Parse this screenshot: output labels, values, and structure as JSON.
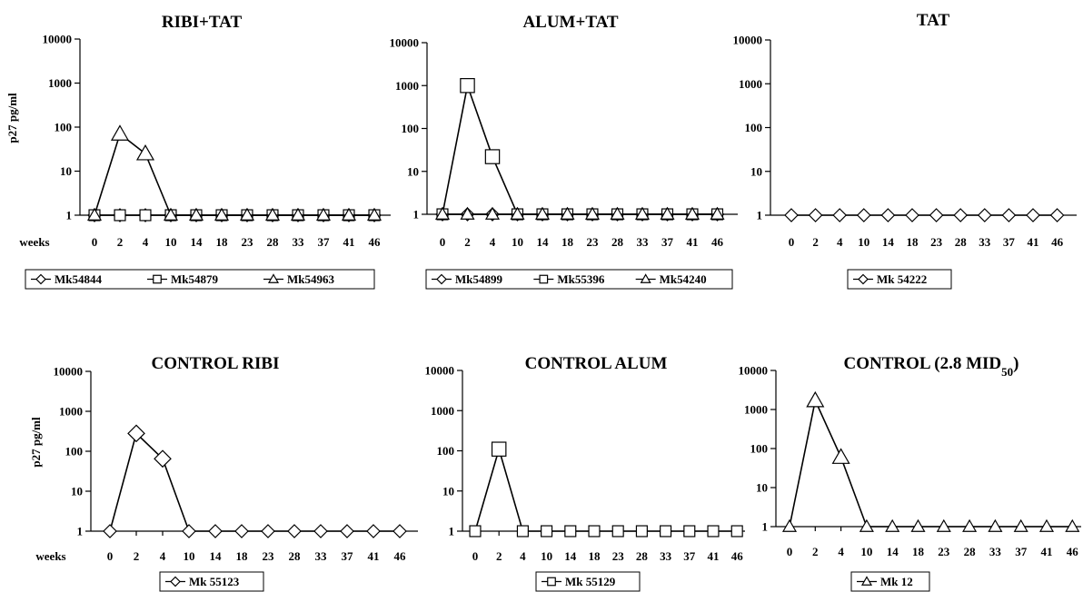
{
  "chart_data": [
    {
      "type": "line",
      "title": "RIBI+TAT",
      "title_sub": "",
      "ylabel": "p27 pg/ml",
      "xlabel": "weeks",
      "yscale": "log",
      "ylim": [
        1,
        10000
      ],
      "yticks": [
        "10000",
        "1000",
        "100",
        "10",
        "1"
      ],
      "categories": [
        "0",
        "2",
        "4",
        "10",
        "14",
        "18",
        "23",
        "28",
        "33",
        "37",
        "41",
        "46"
      ],
      "series": [
        {
          "name": "Mk54844",
          "marker": "diamond",
          "values": [
            1,
            1,
            1,
            1,
            1,
            1,
            1,
            1,
            1,
            1,
            1,
            1
          ]
        },
        {
          "name": "Mk54879",
          "marker": "square",
          "values": [
            1,
            1,
            1,
            1,
            1,
            1,
            1,
            1,
            1,
            1,
            1,
            1
          ]
        },
        {
          "name": "Mk54963",
          "marker": "triangle",
          "values": [
            1,
            70,
            25,
            1,
            1,
            1,
            1,
            1,
            1,
            1,
            1,
            1
          ]
        }
      ],
      "legend_position": "bottom"
    },
    {
      "type": "line",
      "title": "ALUM+TAT",
      "title_sub": "",
      "ylabel": "",
      "xlabel": "",
      "yscale": "log",
      "ylim": [
        1,
        10000
      ],
      "yticks": [
        "10000",
        "1000",
        "100",
        "10",
        "1"
      ],
      "categories": [
        "0",
        "2",
        "4",
        "10",
        "14",
        "18",
        "23",
        "28",
        "33",
        "37",
        "41",
        "46"
      ],
      "series": [
        {
          "name": "Mk54899",
          "marker": "diamond",
          "values": [
            1,
            1,
            1,
            1,
            1,
            1,
            1,
            1,
            1,
            1,
            1,
            1
          ]
        },
        {
          "name": "Mk55396",
          "marker": "square",
          "values": [
            1,
            1000,
            22,
            1,
            1,
            1,
            1,
            1,
            1,
            1,
            1,
            1
          ]
        },
        {
          "name": "Mk54240",
          "marker": "triangle",
          "values": [
            1,
            1,
            1,
            1,
            1,
            1,
            1,
            1,
            1,
            1,
            1,
            1
          ]
        }
      ],
      "legend_position": "bottom"
    },
    {
      "type": "line",
      "title": "TAT",
      "title_sub": "",
      "ylabel": "",
      "xlabel": "",
      "yscale": "log",
      "ylim": [
        1,
        10000
      ],
      "yticks": [
        "10000",
        "1000",
        "100",
        "10",
        "1"
      ],
      "categories": [
        "0",
        "2",
        "4",
        "10",
        "14",
        "18",
        "23",
        "28",
        "33",
        "37",
        "41",
        "46"
      ],
      "series": [
        {
          "name": "Mk 54222",
          "marker": "diamond",
          "values": [
            1,
            1,
            1,
            1,
            1,
            1,
            1,
            1,
            1,
            1,
            1,
            1
          ]
        }
      ],
      "legend_position": "bottom"
    },
    {
      "type": "line",
      "title": "CONTROL RIBI",
      "title_sub": "",
      "ylabel": "p27 pg/ml",
      "xlabel": "weeks",
      "yscale": "log",
      "ylim": [
        1,
        10000
      ],
      "yticks": [
        "10000",
        "1000",
        "100",
        "10",
        "1"
      ],
      "categories": [
        "0",
        "2",
        "4",
        "10",
        "14",
        "18",
        "23",
        "28",
        "33",
        "37",
        "41",
        "46"
      ],
      "series": [
        {
          "name": "Mk 55123",
          "marker": "diamond",
          "values": [
            1,
            280,
            65,
            1,
            1,
            1,
            1,
            1,
            1,
            1,
            1,
            1
          ]
        }
      ],
      "legend_position": "bottom"
    },
    {
      "type": "line",
      "title": "CONTROL ALUM",
      "title_sub": "",
      "ylabel": "",
      "xlabel": "",
      "yscale": "log",
      "ylim": [
        1,
        10000
      ],
      "yticks": [
        "10000",
        "1000",
        "100",
        "10",
        "1"
      ],
      "categories": [
        "0",
        "2",
        "4",
        "10",
        "14",
        "18",
        "23",
        "28",
        "33",
        "37",
        "41",
        "46"
      ],
      "series": [
        {
          "name": "Mk 55129",
          "marker": "square",
          "values": [
            1,
            110,
            1,
            1,
            1,
            1,
            1,
            1,
            1,
            1,
            1,
            1
          ]
        }
      ],
      "legend_position": "bottom"
    },
    {
      "type": "line",
      "title": "CONTROL (2.8 MID",
      "title_sub": "50",
      "title_end": ")",
      "ylabel": "",
      "xlabel": "",
      "yscale": "log",
      "ylim": [
        1,
        10000
      ],
      "yticks": [
        "10000",
        "1000",
        "100",
        "10",
        "1"
      ],
      "categories": [
        "0",
        "2",
        "4",
        "10",
        "14",
        "18",
        "23",
        "28",
        "33",
        "37",
        "41",
        "46"
      ],
      "series": [
        {
          "name": "Mk 12",
          "marker": "triangle",
          "values": [
            1,
            1700,
            60,
            1,
            1,
            1,
            1,
            1,
            1,
            1,
            1,
            1
          ]
        }
      ],
      "legend_position": "bottom"
    }
  ]
}
